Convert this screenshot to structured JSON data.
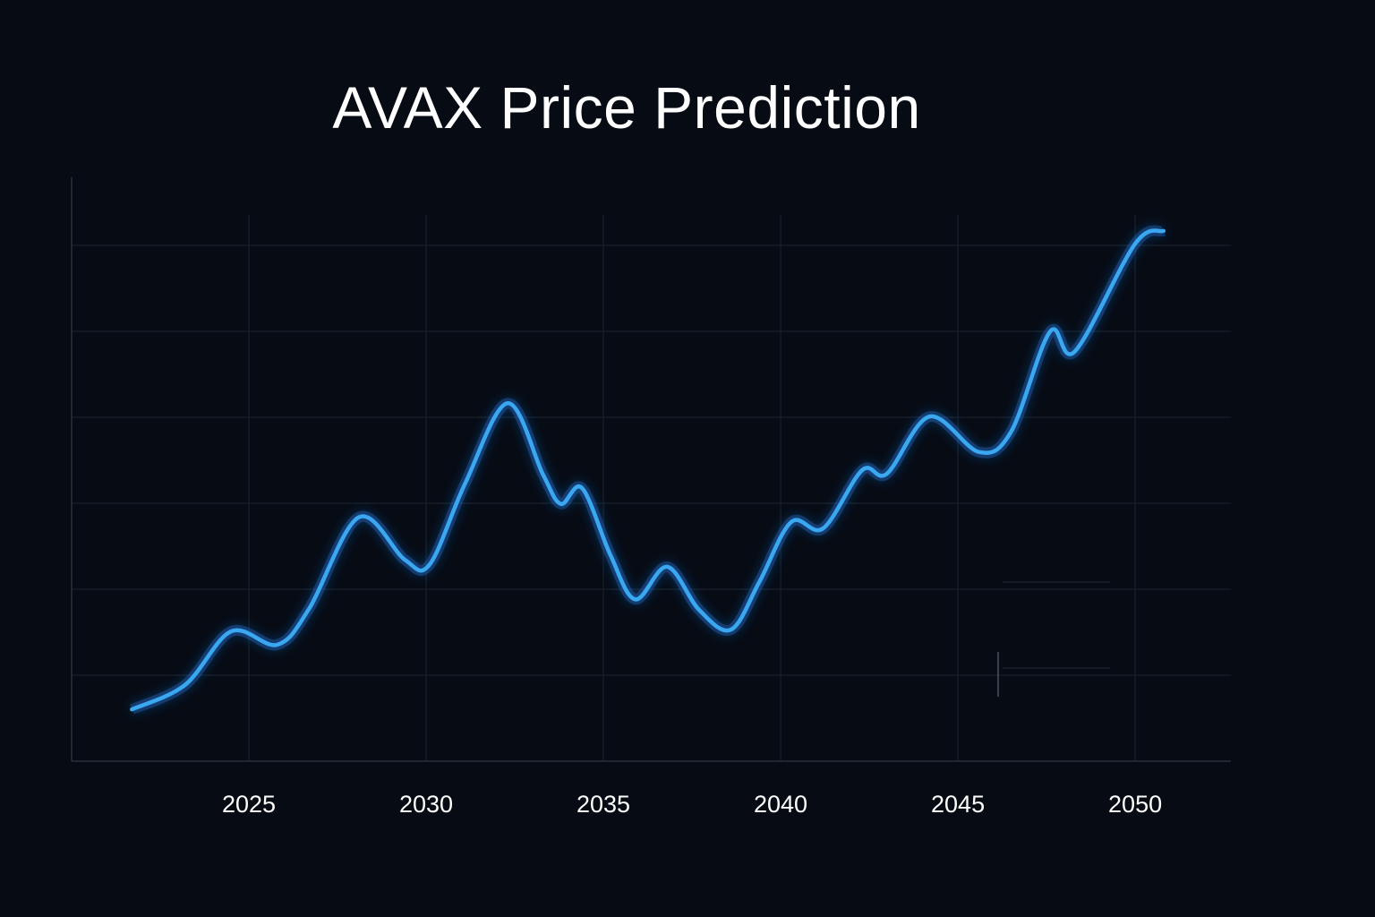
{
  "chart_data": {
    "type": "line",
    "title": "AVAX Price Prediction",
    "xlabel": "",
    "ylabel": "",
    "xticks": [
      "2025",
      "2030",
      "2035",
      "2040",
      "2045",
      "2050"
    ],
    "xlim": [
      2020,
      2052.7
    ],
    "ylim": [
      0,
      100
    ],
    "y_tick_labels_shown": false,
    "grid": true,
    "line_color": "#3aa8f0",
    "background": "#060b14",
    "series": [
      {
        "x": [
          2021.7,
          2023.2,
          2024.5,
          2025.8,
          2026.7,
          2028.1,
          2029.4,
          2030.1,
          2031.1,
          2032.3,
          2033.3,
          2033.8,
          2034.4,
          2035.2,
          2035.9,
          2036.8,
          2037.7,
          2038.6,
          2039.4,
          2040.3,
          2041.2,
          2042.3,
          2043.0,
          2044.2,
          2045.6,
          2046.5,
          2047.6,
          2048.3,
          2050.0,
          2050.8
        ],
        "y": [
          8.9,
          13.1,
          22.3,
          20.0,
          26.2,
          41.9,
          34.6,
          33.8,
          47.7,
          61.5,
          49.2,
          44.2,
          46.9,
          35.4,
          27.8,
          33.4,
          26.0,
          22.6,
          30.8,
          41.1,
          40.0,
          50.0,
          49.4,
          59.2,
          53.1,
          56.6,
          73.8,
          70.4,
          88.9,
          91.1
        ]
      }
    ]
  }
}
